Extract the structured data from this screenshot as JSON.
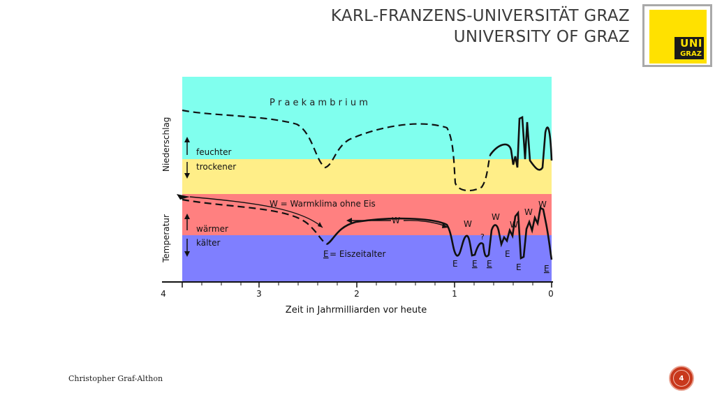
{
  "header": {
    "title_line1": "KARL-FRANZENS-UNIVERSITÄT GRAZ",
    "title_line2": "UNIVERSITY OF GRAZ"
  },
  "logo": {
    "line1": "UNI",
    "line2": "GRAZ",
    "color": "#ffe100"
  },
  "footer": {
    "author": "Christopher Graf-Althon",
    "page_number": "4"
  },
  "diagram": {
    "band_colors": {
      "feucht": "#80ffee",
      "trocken": "#ffee88",
      "warm": "#ff8080",
      "kalt": "#7f7fff"
    },
    "era_label": "P r a e k a m b r i u m",
    "ylabel_top": "Niederschlag",
    "ylabel_bottom": "Temperatur",
    "feuchter": "feuchter",
    "trockener": "trockener",
    "waermer": "wärmer",
    "kaelter": "kälter",
    "legend_w": "W = Warmklima ohne Eis",
    "legend_e_letter": "E",
    "legend_e_rest": " = Eiszeitalter",
    "w_label": "W",
    "e_label": "E",
    "question": "?",
    "xlabel": "Zeit in Jahrmilliarden vor heute",
    "ticks": [
      "4",
      "3",
      "2",
      "1",
      "0"
    ]
  }
}
